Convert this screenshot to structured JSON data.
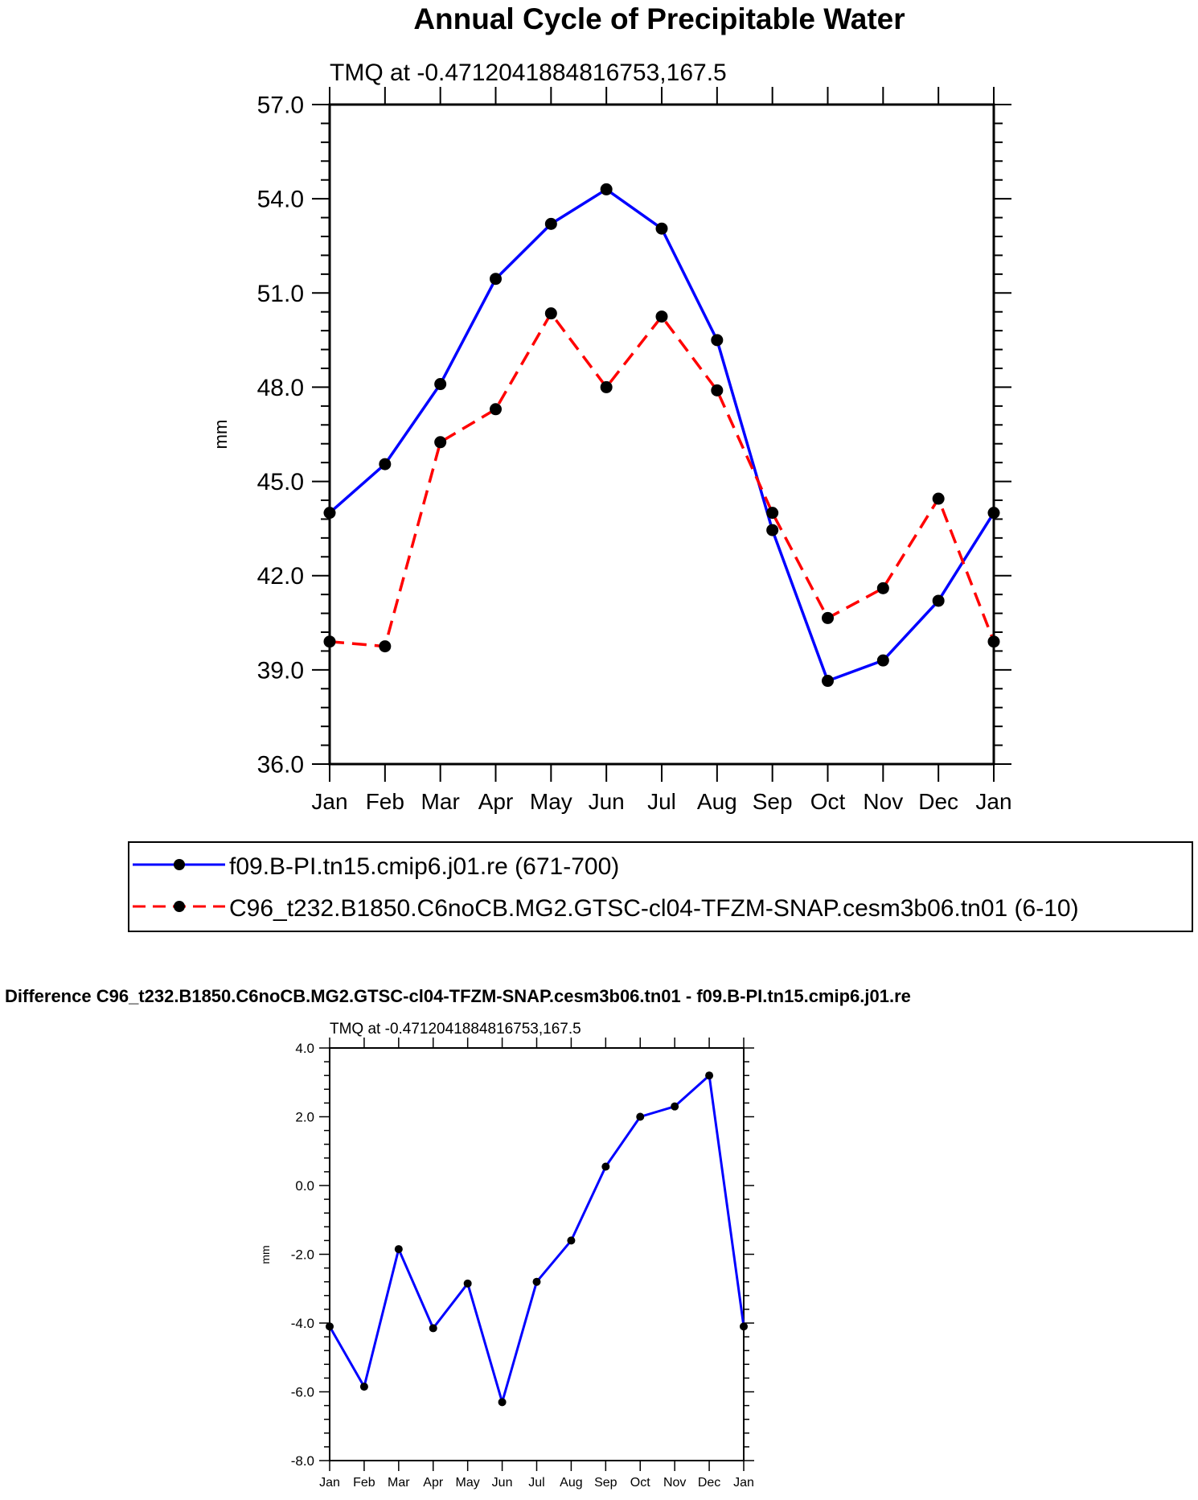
{
  "chart_data": [
    {
      "type": "line",
      "title": "Annual Cycle of Precipitable Water",
      "subtitle": "TMQ at -0.4712041884816753,167.5",
      "xlabel": "",
      "ylabel": "mm",
      "categories": [
        "Jan",
        "Feb",
        "Mar",
        "Apr",
        "May",
        "Jun",
        "Jul",
        "Aug",
        "Sep",
        "Oct",
        "Nov",
        "Dec",
        "Jan"
      ],
      "ylim": [
        36.0,
        57.0
      ],
      "yticks": [
        "36.0",
        "39.0",
        "42.0",
        "45.0",
        "48.0",
        "51.0",
        "54.0",
        "57.0"
      ],
      "grid": false,
      "legend_position": "bottom",
      "series": [
        {
          "name": "f09.B-PI.tn15.cmip6.j01.re (671-700)",
          "color": "#0000ff",
          "style": "solid",
          "values": [
            44.0,
            45.55,
            48.1,
            51.45,
            53.2,
            54.3,
            53.05,
            49.5,
            43.45,
            38.65,
            39.3,
            41.2,
            44.0
          ]
        },
        {
          "name": "C96_t232.B1850.C6noCB.MG2.GTSC-cl04-TFZM-SNAP.cesm3b06.tn01 (6-10)",
          "color": "#ff0000",
          "style": "dashed",
          "values": [
            39.9,
            39.75,
            46.25,
            47.3,
            50.35,
            48.0,
            50.25,
            47.9,
            44.0,
            40.65,
            41.6,
            44.45,
            39.9
          ]
        }
      ]
    },
    {
      "type": "line",
      "title": "Difference C96_t232.B1850.C6noCB.MG2.GTSC-cl04-TFZM-SNAP.cesm3b06.tn01 - f09.B-PI.tn15.cmip6.j01.re",
      "subtitle": "TMQ at -0.4712041884816753,167.5",
      "xlabel": "",
      "ylabel": "mm",
      "categories": [
        "Jan",
        "Feb",
        "Mar",
        "Apr",
        "May",
        "Jun",
        "Jul",
        "Aug",
        "Sep",
        "Oct",
        "Nov",
        "Dec",
        "Jan"
      ],
      "ylim": [
        -8.0,
        4.0
      ],
      "yticks": [
        "-8.0",
        "-6.0",
        "-4.0",
        "-2.0",
        "0.0",
        "2.0",
        "4.0"
      ],
      "grid": false,
      "series": [
        {
          "name": "difference",
          "color": "#0000ff",
          "style": "solid",
          "values": [
            -4.1,
            -5.85,
            -1.85,
            -4.15,
            -2.85,
            -6.3,
            -2.8,
            -1.6,
            0.55,
            2.0,
            2.3,
            3.2,
            -4.1
          ]
        }
      ]
    }
  ]
}
